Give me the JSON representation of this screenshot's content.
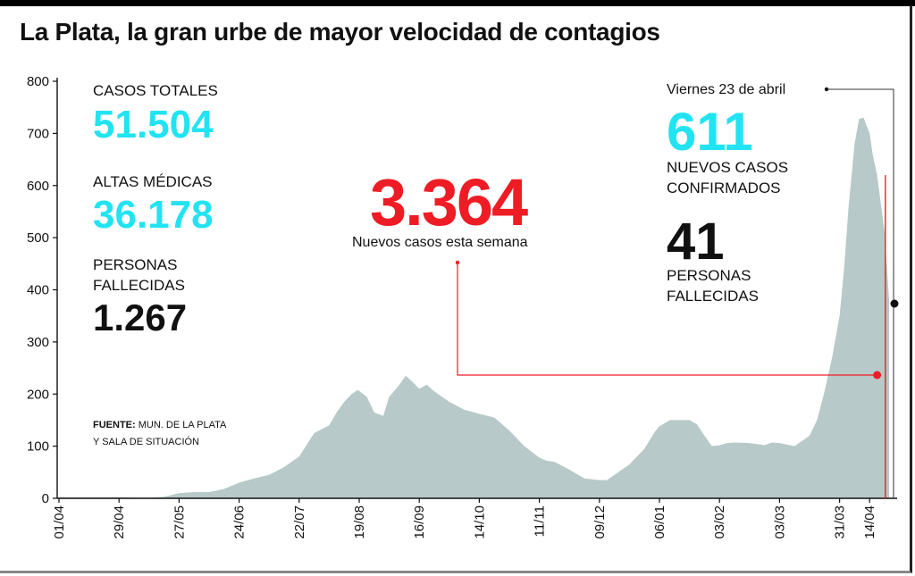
{
  "title": "La Plata, la gran urbe de mayor velocidad de contagios",
  "stats": {
    "total_label": "CASOS TOTALES",
    "total_value": "51.504",
    "altas_label": "ALTAS MÉDICAS",
    "altas_value": "36.178",
    "deaths_label_1": "PERSONAS",
    "deaths_label_2": "FALLECIDAS",
    "deaths_value": "1.267",
    "week_value": "3.364",
    "week_label": "Nuevos casos esta semana",
    "day_label": "Viernes 23 de abril",
    "day_cases_value": "611",
    "day_cases_label_1": "NUEVOS CASOS",
    "day_cases_label_2": "CONFIRMADOS",
    "day_deaths_value": "41",
    "day_deaths_label_1": "PERSONAS",
    "day_deaths_label_2": "FALLECIDAS"
  },
  "source": {
    "label": "FUENTE:",
    "text_1": "MUN. DE LA PLATA",
    "text_2": "Y SALA DE SITUACIÓN"
  },
  "colors": {
    "area": "#b7c9c8",
    "cyan": "#22e3f2",
    "red": "#ee1c24",
    "text": "#111111"
  },
  "chart_data": {
    "type": "area",
    "title": "La Plata, la gran urbe de mayor velocidad de contagios",
    "ylim": [
      0,
      800
    ],
    "yticks": [
      0,
      100,
      200,
      300,
      400,
      500,
      600,
      700,
      800
    ],
    "xticks": [
      "01/04",
      "29/04",
      "27/05",
      "24/06",
      "22/07",
      "19/08",
      "16/09",
      "14/10",
      "11/11",
      "09/12",
      "06/01",
      "03/02",
      "03/03",
      "31/03",
      "14/04"
    ],
    "x_week_index": [
      0,
      4,
      8,
      12,
      16,
      20,
      24,
      28,
      32,
      36,
      40,
      44,
      48,
      52,
      54
    ],
    "series": [
      {
        "values": [
          [
            0,
            2
          ],
          [
            2,
            2
          ],
          [
            4,
            2
          ],
          [
            6,
            1
          ],
          [
            7,
            3
          ],
          [
            8,
            10
          ],
          [
            9,
            12
          ],
          [
            10,
            12
          ],
          [
            11,
            18
          ],
          [
            12,
            30
          ],
          [
            13,
            38
          ],
          [
            14,
            45
          ],
          [
            15,
            60
          ],
          [
            16,
            80
          ],
          [
            17,
            125
          ],
          [
            18,
            140
          ],
          [
            18.5,
            165
          ],
          [
            19,
            185
          ],
          [
            19.5,
            200
          ],
          [
            19.9,
            208
          ],
          [
            20.5,
            195
          ],
          [
            21,
            165
          ],
          [
            21.6,
            158
          ],
          [
            22,
            195
          ],
          [
            22.6,
            215
          ],
          [
            23.1,
            235
          ],
          [
            23.5,
            225
          ],
          [
            24,
            210
          ],
          [
            24.5,
            218
          ],
          [
            25,
            205
          ],
          [
            26,
            185
          ],
          [
            27,
            170
          ],
          [
            28,
            162
          ],
          [
            29,
            155
          ],
          [
            30,
            130
          ],
          [
            31,
            100
          ],
          [
            32,
            78
          ],
          [
            32.5,
            72
          ],
          [
            33,
            70
          ],
          [
            34,
            55
          ],
          [
            35,
            38
          ],
          [
            36,
            35
          ],
          [
            36.5,
            35
          ],
          [
            37,
            45
          ],
          [
            38,
            65
          ],
          [
            39,
            95
          ],
          [
            39.7,
            128
          ],
          [
            40,
            138
          ],
          [
            40.7,
            150
          ],
          [
            41.5,
            150
          ],
          [
            42,
            150
          ],
          [
            42.5,
            142
          ],
          [
            43,
            120
          ],
          [
            43.5,
            100
          ],
          [
            44,
            102
          ],
          [
            44.5,
            106
          ],
          [
            45,
            107
          ],
          [
            46,
            106
          ],
          [
            47,
            102
          ],
          [
            47.5,
            107
          ],
          [
            48,
            106
          ],
          [
            49,
            100
          ],
          [
            49.5,
            110
          ],
          [
            50,
            120
          ],
          [
            50.5,
            150
          ],
          [
            51,
            205
          ],
          [
            51.5,
            270
          ],
          [
            52,
            350
          ],
          [
            52.3,
            440
          ],
          [
            52.6,
            560
          ],
          [
            53,
            680
          ],
          [
            53.3,
            728
          ],
          [
            53.6,
            730
          ],
          [
            54,
            700
          ],
          [
            54.2,
            660
          ],
          [
            54.5,
            620
          ],
          [
            55,
            510
          ],
          [
            55.3,
            380
          ]
        ]
      }
    ]
  }
}
